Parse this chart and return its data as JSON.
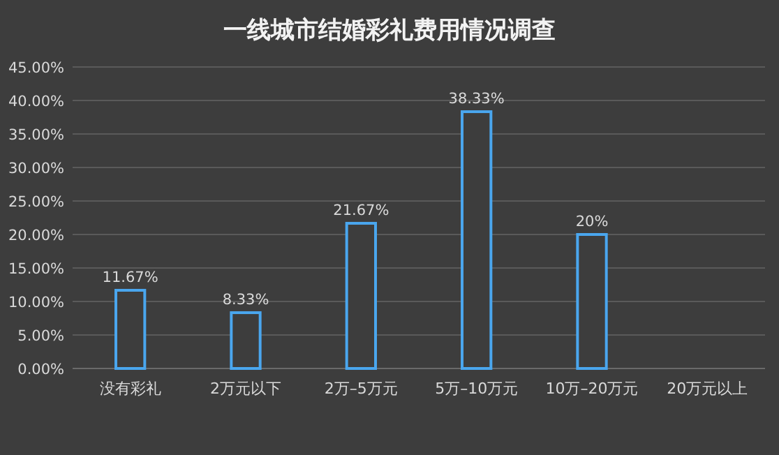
{
  "chart_data": {
    "type": "bar",
    "title": "一线城市结婚彩礼费用情况调查",
    "categories": [
      "没有彩礼",
      "2万元以下",
      "2万–5万元",
      "5万–10万元",
      "10万–20万元",
      "20万元以上"
    ],
    "values": [
      11.67,
      8.33,
      21.67,
      38.33,
      20,
      0
    ],
    "value_labels": [
      "11.67%",
      "8.33%",
      "21.67%",
      "38.33%",
      "20%",
      null
    ],
    "color": "#4aa6ee",
    "ylim": [
      0,
      45
    ],
    "yticks": [
      {
        "value": 0,
        "label": "0.00%"
      },
      {
        "value": 5,
        "label": "5.00%"
      },
      {
        "value": 10,
        "label": "10.00%"
      },
      {
        "value": 15,
        "label": "15.00%"
      },
      {
        "value": 20,
        "label": "20.00%"
      },
      {
        "value": 25,
        "label": "25.00%"
      },
      {
        "value": 30,
        "label": "30.00%"
      },
      {
        "value": 35,
        "label": "35.00%"
      },
      {
        "value": 40,
        "label": "40.00%"
      },
      {
        "value": 45,
        "label": "45.00%"
      }
    ],
    "grid": "y"
  }
}
